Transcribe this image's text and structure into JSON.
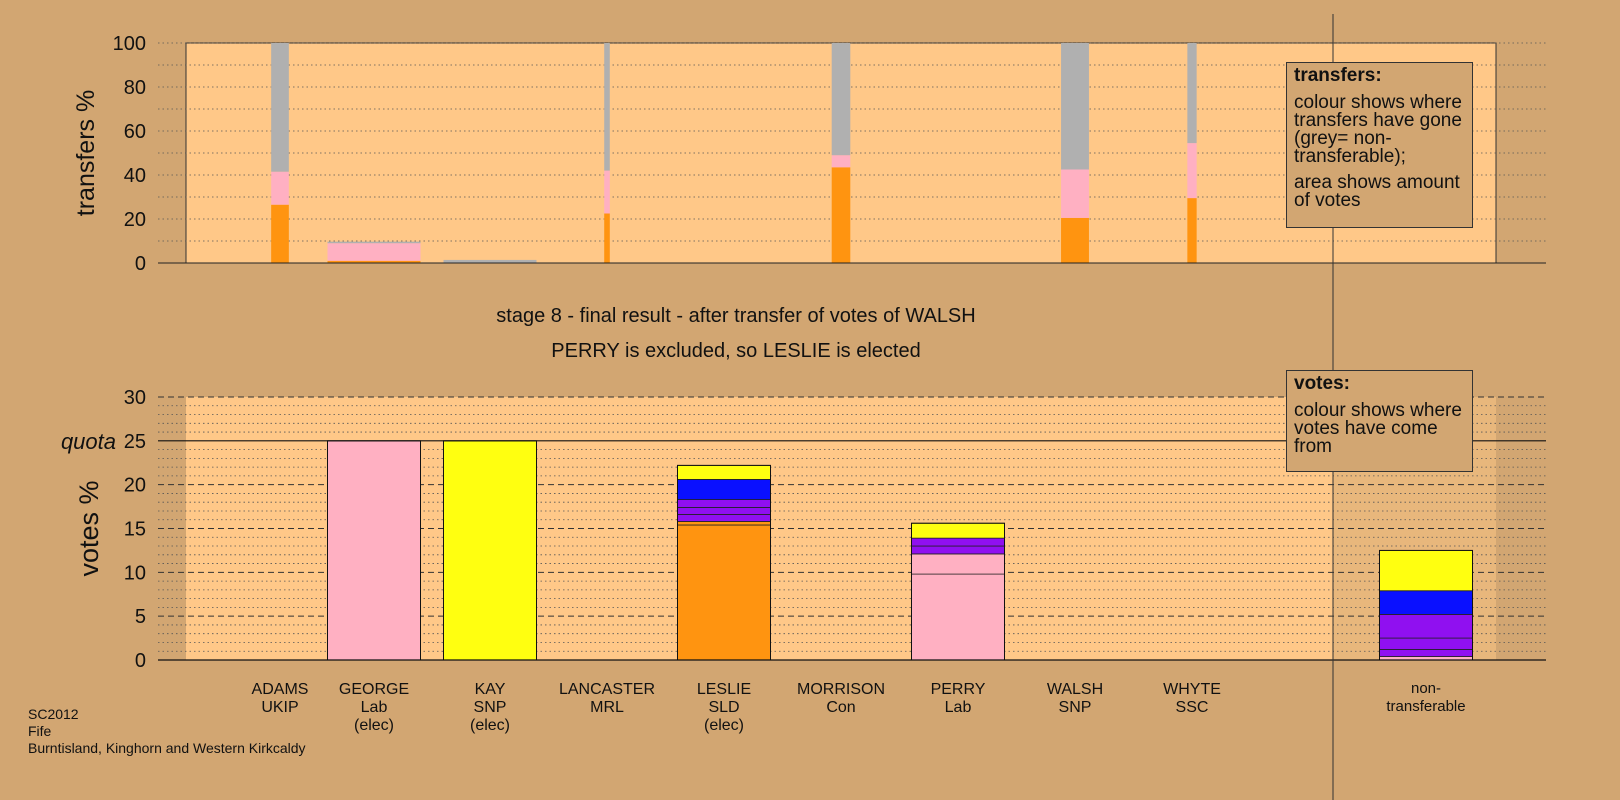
{
  "chart_data": [
    {
      "type": "bar",
      "name": "transfers",
      "ylabel": "transfers %",
      "ylim": [
        0,
        100
      ],
      "yticks": [
        0,
        20,
        40,
        60,
        80,
        100
      ],
      "colors": {
        "orange": "#ff9410",
        "pink": "#ffb0c2",
        "grey": "#b0b0b0"
      },
      "bars": [
        {
          "candidate": "ADAMS",
          "width_share": 0.19,
          "segments": [
            {
              "color": "orange",
              "value": 26.5
            },
            {
              "color": "pink",
              "value": 15
            },
            {
              "color": "grey",
              "value": 58.5
            }
          ]
        },
        {
          "candidate": "GEORGE",
          "width_share": 1.0,
          "segments": [
            {
              "color": "orange",
              "value": 1
            },
            {
              "color": "pink",
              "value": 8
            },
            {
              "color": "grey",
              "value": 0.7
            }
          ]
        },
        {
          "candidate": "KAY",
          "width_share": 1.0,
          "segments": [
            {
              "color": "grey",
              "value": 1.4
            }
          ]
        },
        {
          "candidate": "LANCASTER",
          "width_share": 0.06,
          "segments": [
            {
              "color": "orange",
              "value": 22.5
            },
            {
              "color": "pink",
              "value": 19.5
            },
            {
              "color": "grey",
              "value": 58
            }
          ]
        },
        {
          "candidate": "MORRISON",
          "width_share": 0.2,
          "segments": [
            {
              "color": "orange",
              "value": 43.5
            },
            {
              "color": "pink",
              "value": 5.5
            },
            {
              "color": "grey",
              "value": 51
            }
          ]
        },
        {
          "candidate": "WALSH",
          "width_share": 0.3,
          "segments": [
            {
              "color": "orange",
              "value": 20.5
            },
            {
              "color": "pink",
              "value": 22
            },
            {
              "color": "grey",
              "value": 57.5
            }
          ]
        },
        {
          "candidate": "WHYTE",
          "width_share": 0.1,
          "segments": [
            {
              "color": "orange",
              "value": 29.5
            },
            {
              "color": "pink",
              "value": 25
            },
            {
              "color": "grey",
              "value": 45.5
            }
          ]
        }
      ]
    },
    {
      "type": "bar",
      "name": "votes",
      "ylabel": "votes %",
      "ylim": [
        0,
        30
      ],
      "yticks": [
        0,
        5,
        10,
        15,
        20,
        25,
        30
      ],
      "quota": 25,
      "colors": {
        "orange": "#ff9410",
        "pink": "#ffb0c2",
        "yellow": "#ffff10",
        "blue": "#0a10ff",
        "purple": "#9010f0",
        "grey": "#b0b0b0"
      },
      "bars": [
        {
          "candidate": "GEORGE",
          "segments": [
            {
              "color": "pink",
              "value": 25
            }
          ]
        },
        {
          "candidate": "KAY",
          "segments": [
            {
              "color": "yellow",
              "value": 25
            }
          ]
        },
        {
          "candidate": "LESLIE",
          "segments": [
            {
              "color": "orange",
              "value": 15.4
            },
            {
              "color": "orange",
              "value": 0.4
            },
            {
              "color": "purple",
              "value": 0.8
            },
            {
              "color": "purple",
              "value": 0.8
            },
            {
              "color": "purple",
              "value": 0.9
            },
            {
              "color": "blue",
              "value": 2.3
            },
            {
              "color": "yellow",
              "value": 1.6
            }
          ]
        },
        {
          "candidate": "PERRY",
          "segments": [
            {
              "color": "pink",
              "value": 9.8
            },
            {
              "color": "pink",
              "value": 2.3
            },
            {
              "color": "purple",
              "value": 0.9
            },
            {
              "color": "purple",
              "value": 0.9
            },
            {
              "color": "yellow",
              "value": 1.7
            }
          ]
        },
        {
          "candidate": "non-transferable",
          "segments": [
            {
              "color": "pink",
              "value": 0.4
            },
            {
              "color": "purple",
              "value": 0.8
            },
            {
              "color": "purple",
              "value": 1.3
            },
            {
              "color": "purple",
              "value": 2.7
            },
            {
              "color": "blue",
              "value": 2.7
            },
            {
              "color": "yellow",
              "value": 4.6
            }
          ]
        }
      ]
    }
  ],
  "candidates": [
    {
      "name": "ADAMS",
      "party": "UKIP",
      "status": ""
    },
    {
      "name": "GEORGE",
      "party": "Lab",
      "status": "(elec)"
    },
    {
      "name": "KAY",
      "party": "SNP",
      "status": "(elec)"
    },
    {
      "name": "LANCASTER",
      "party": "MRL",
      "status": ""
    },
    {
      "name": "LESLIE",
      "party": "SLD",
      "status": "(elec)"
    },
    {
      "name": "MORRISON",
      "party": "Con",
      "status": ""
    },
    {
      "name": "PERRY",
      "party": "Lab",
      "status": ""
    },
    {
      "name": "WALSH",
      "party": "SNP",
      "status": ""
    },
    {
      "name": "WHYTE",
      "party": "SSC",
      "status": ""
    }
  ],
  "nontransferable_label": [
    "non-",
    "transferable"
  ],
  "quota_label": "quota",
  "stage_line1": "stage 8 - final result - after transfer of votes of WALSH",
  "stage_line2": "PERRY is excluded, so LESLIE is elected",
  "legend_transfers": {
    "title": "transfers:",
    "text1": "colour shows where transfers have gone (grey= non-transferable);",
    "text2": "area shows amount of votes"
  },
  "legend_votes": {
    "title": "votes:",
    "text1": "colour shows where votes have come from"
  },
  "footer": {
    "line1": "SC2012",
    "line2": "Fife",
    "line3": "Burntisland, Kinghorn and Western Kirkcaldy"
  },
  "colors": {
    "background": "#d2a672",
    "plot_area": "#ffc888"
  }
}
